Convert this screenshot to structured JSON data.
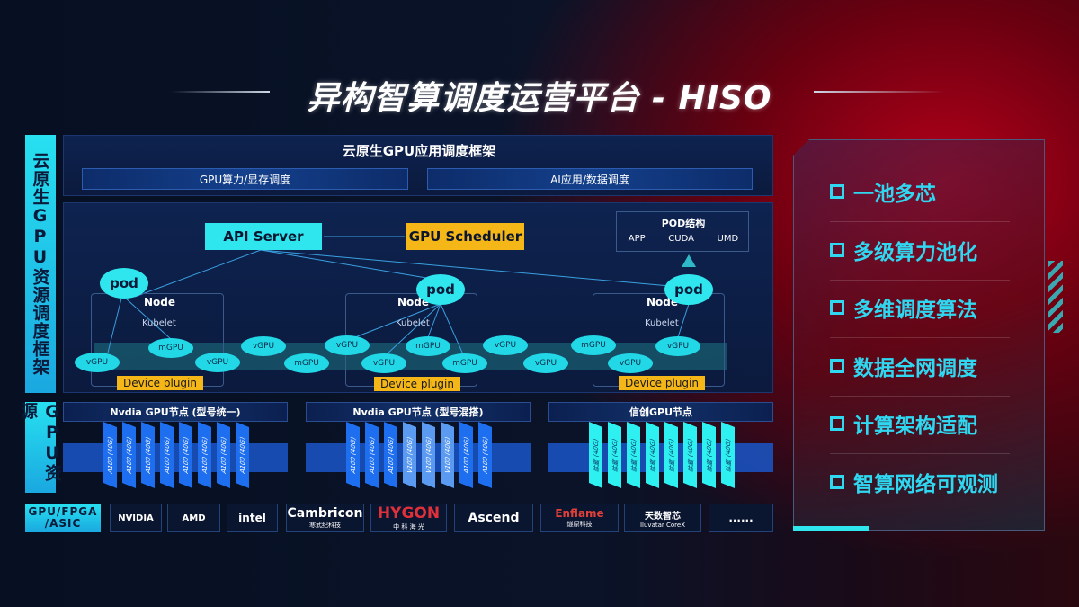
{
  "title": "异构智算调度运营平台 - HISO",
  "left_labels": {
    "framework": "云原生GPU资源调度框架",
    "resources": "GPU资源",
    "vendors": "GPU/FPGA /ASIC"
  },
  "top": {
    "title": "云原生GPU应用调度框架",
    "boxes": [
      "GPU算力/显存调度",
      "AI应用/数据调度"
    ]
  },
  "arch": {
    "api_server": "API Server",
    "gpu_scheduler": "GPU Scheduler",
    "pod_struct": {
      "title": "POD结构",
      "items": [
        "APP",
        "CUDA",
        "UMD"
      ]
    },
    "pod": "pod",
    "node": "Node",
    "kubelet": "Kubelet",
    "device_plugin": "Device plugin",
    "units": [
      "vGPU",
      "mGPU",
      "vGPU",
      "vGPU",
      "mGPU",
      "vGPU",
      "vGPU",
      "mGPU",
      "mGPU",
      "vGPU",
      "vGPU",
      "mGPU",
      "vGPU",
      "vGPU"
    ]
  },
  "gpu_nodes": [
    {
      "title": "Nvdia GPU节点 (型号统一)",
      "cards": [
        "A100 (40G)",
        "A100 (40G)",
        "A100 (40G)",
        "A100 (40G)",
        "A100 (40G)",
        "A100 (40G)",
        "A100 (40G)",
        "A100 (40G)"
      ]
    },
    {
      "title": "Nvdia GPU节点 (型号混搭)",
      "cards": [
        "A100 (40G)",
        "A100 (40G)",
        "A100 (40G)",
        "V100 (40G)",
        "V100 (40G)",
        "V100 (40G)",
        "A100 (40G)",
        "A100 (40G)"
      ]
    },
    {
      "title": "信创GPU节点",
      "cards": [
        "昇腾 (40G)",
        "昇腾 (40G)",
        "昇腾 (40G)",
        "昇腾 (40G)",
        "昇腾 (40G)",
        "昇腾 (40G)",
        "昇腾 (40G)",
        "昇腾 (40G)"
      ]
    }
  ],
  "vendors": [
    {
      "name": "NVIDIA",
      "sub": ""
    },
    {
      "name": "AMD",
      "sub": ""
    },
    {
      "name": "intel",
      "sub": ""
    },
    {
      "name": "Cambricon",
      "sub": "寒武纪科技"
    },
    {
      "name": "HYGON",
      "sub": "中 科 海 光"
    },
    {
      "name": "Ascend",
      "sub": ""
    },
    {
      "name": "Enflame",
      "sub": "燧原科技"
    },
    {
      "name": "天数智芯",
      "sub": "Iluvatar CoreX"
    },
    {
      "name": "......",
      "sub": ""
    }
  ],
  "features": [
    "一池多芯",
    "多级算力池化",
    "多维调度算法",
    "数据全网调度",
    "计算架构适配",
    "智算网络可观测"
  ],
  "colors": {
    "cyan": "#2fe6ee",
    "orange": "#f5b618",
    "blue": "#1a56c8",
    "red": "#b4001a"
  }
}
